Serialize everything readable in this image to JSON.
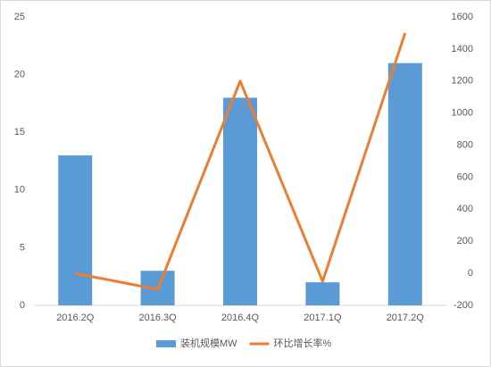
{
  "chart_data": {
    "type": "bar-line",
    "categories": [
      "2016.2Q",
      "2016.3Q",
      "2016.4Q",
      "2017.1Q",
      "2017.2Q"
    ],
    "series": [
      {
        "name": "装机规模MW",
        "type": "bar",
        "color": "#5b9bd5",
        "values": [
          13,
          3,
          18,
          2,
          21
        ]
      },
      {
        "name": "环比增长率%",
        "type": "line",
        "axis": "y2",
        "color": "#ed7d31",
        "values": [
          0,
          -100,
          1200,
          -50,
          1500
        ]
      }
    ],
    "ylim": [
      0,
      25
    ],
    "yticks": [
      0,
      5,
      10,
      15,
      20,
      25
    ],
    "y2lim": [
      -200,
      1600
    ],
    "y2ticks": [
      -200,
      0,
      200,
      400,
      600,
      800,
      1000,
      1200,
      1400,
      1600
    ],
    "grid": false,
    "legend": "bottom"
  }
}
